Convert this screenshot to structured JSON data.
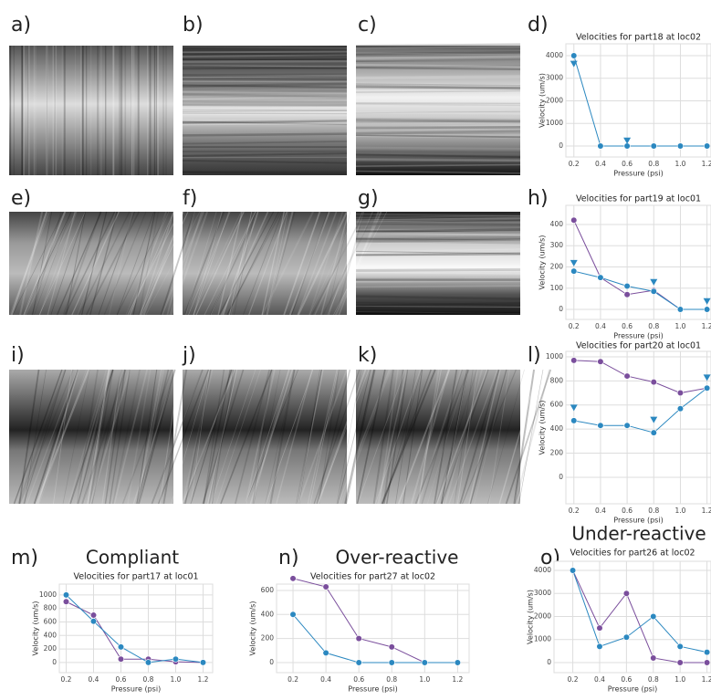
{
  "panel_labels": [
    "a)",
    "b)",
    "c)",
    "d)",
    "e)",
    "f)",
    "g)",
    "h)",
    "i)",
    "j)",
    "k)",
    "l)",
    "m)",
    "n)",
    "o)"
  ],
  "chart_data": [
    {
      "type": "line",
      "title": "Velocities for part18 at loc02",
      "x_label": "Pressure (psi)",
      "y_label": "Velocity (um/s)",
      "x": [
        0.2,
        0.4,
        0.6,
        0.8,
        1.0,
        1.2
      ],
      "xlim": [
        0.14,
        1.23
      ],
      "xticks": [
        0.2,
        0.4,
        0.6,
        0.8,
        {
          "value": 1,
          "label": "1.0"
        },
        1.2
      ],
      "ylim": [
        -485,
        4525
      ],
      "yticks": [
        0,
        1000,
        2000,
        3000,
        4000
      ],
      "grid": true,
      "series": [
        {
          "color": "#2b88c0",
          "marker": "circle",
          "linestyle": "solid",
          "values": [
            4000,
            0,
            0,
            0,
            0,
            0
          ]
        },
        {
          "color": "#2b88c0",
          "marker": "triangle",
          "linestyle": "none",
          "values": [
            3650,
            null,
            250,
            null,
            null,
            null
          ]
        }
      ]
    },
    {
      "type": "line",
      "title": "Velocities for part19 at loc01",
      "x_label": "Pressure (psi)",
      "y_label": "Velocity (um/s)",
      "x": [
        0.2,
        0.4,
        0.6,
        0.8,
        1.0,
        1.2
      ],
      "xlim": [
        0.14,
        1.23
      ],
      "xticks": [
        0.2,
        0.4,
        0.6,
        0.8,
        {
          "value": 1,
          "label": "1.0"
        },
        1.2
      ],
      "ylim": [
        -47,
        490
      ],
      "yticks": [
        0,
        100,
        200,
        300,
        400
      ],
      "grid": true,
      "series": [
        {
          "color": "#7a4e9c",
          "marker": "circle",
          "linestyle": "solid",
          "values": [
            420,
            150,
            70,
            90,
            0,
            0
          ]
        },
        {
          "color": "#2b88c0",
          "marker": "circle",
          "linestyle": "solid",
          "values": [
            180,
            150,
            110,
            85,
            0,
            0
          ]
        },
        {
          "color": "#2b88c0",
          "marker": "triangle",
          "linestyle": "none",
          "values": [
            220,
            null,
            null,
            130,
            null,
            40
          ]
        }
      ]
    },
    {
      "type": "line",
      "title": "Velocities for part20 at loc01",
      "x_label": "Pressure (psi)",
      "y_label": "Velocity (um/s)",
      "x": [
        0.2,
        0.4,
        0.6,
        0.8,
        1.0,
        1.2
      ],
      "xlim": [
        0.14,
        1.23
      ],
      "xticks": [
        0.2,
        0.4,
        0.6,
        0.8,
        {
          "value": 1,
          "label": "1.0"
        },
        1.2
      ],
      "ylim": [
        -220,
        1045
      ],
      "yticks": [
        0,
        200,
        400,
        600,
        800,
        1000
      ],
      "grid": true,
      "series": [
        {
          "color": "#7a4e9c",
          "marker": "circle",
          "linestyle": "solid",
          "values": [
            970,
            960,
            840,
            790,
            700,
            740
          ]
        },
        {
          "color": "#2b88c0",
          "marker": "circle",
          "linestyle": "solid",
          "values": [
            470,
            430,
            430,
            370,
            570,
            740
          ]
        },
        {
          "color": "#2b88c0",
          "marker": "triangle",
          "linestyle": "none",
          "values": [
            580,
            null,
            null,
            480,
            null,
            830
          ]
        }
      ]
    },
    {
      "type": "line",
      "heading": "Compliant",
      "title": "Velocities for part17 at loc01",
      "x_label": "Pressure (psi)",
      "y_label": "Velocity (um/s)",
      "x": [
        0.2,
        0.4,
        0.6,
        0.8,
        1.0,
        1.2
      ],
      "xlim": [
        0.15,
        1.27
      ],
      "xticks": [
        0.2,
        0.4,
        0.6,
        0.8,
        {
          "value": 1,
          "label": "1.0"
        },
        1.2
      ],
      "ylim": [
        -150,
        1160
      ],
      "yticks": [
        0,
        200,
        400,
        600,
        800,
        1000
      ],
      "grid": true,
      "series": [
        {
          "color": "#7a4e9c",
          "marker": "circle",
          "linestyle": "solid",
          "values": [
            900,
            700,
            50,
            50,
            10,
            0
          ]
        },
        {
          "color": "#2b88c0",
          "marker": "circle",
          "linestyle": "solid",
          "values": [
            1000,
            610,
            230,
            0,
            50,
            0
          ]
        }
      ]
    },
    {
      "type": "line",
      "heading": "Over-reactive",
      "title": "Velocities for part27 at loc02",
      "x_label": "Pressure (psi)",
      "y_label": "Velocity (um/s)",
      "x": [
        0.2,
        0.4,
        0.6,
        0.8,
        1.0,
        1.2
      ],
      "xlim": [
        0.1,
        1.27
      ],
      "xticks": [
        0.2,
        0.4,
        0.6,
        0.8,
        {
          "value": 1,
          "label": "1.0"
        },
        1.2
      ],
      "ylim": [
        -84,
        653
      ],
      "yticks": [
        0,
        200,
        400,
        600
      ],
      "grid": true,
      "series": [
        {
          "color": "#7a4e9c",
          "marker": "circle",
          "linestyle": "solid",
          "values": [
            700,
            630,
            200,
            130,
            0,
            0
          ]
        },
        {
          "color": "#2b88c0",
          "marker": "circle",
          "linestyle": "solid",
          "values": [
            400,
            80,
            0,
            0,
            0,
            0
          ]
        }
      ]
    },
    {
      "type": "line",
      "heading": "Under-reactive",
      "title": "Velocities for part26 at loc02",
      "x_label": "Pressure (psi)",
      "y_label": "Velocity (um/s)",
      "x": [
        0.2,
        0.4,
        0.6,
        0.8,
        1.0,
        1.2
      ],
      "xlim": [
        0.06,
        1.23
      ],
      "xticks": [
        0.2,
        0.4,
        0.6,
        0.8,
        {
          "value": 1,
          "label": "1.0"
        },
        1.2
      ],
      "ylim": [
        -436,
        4396
      ],
      "yticks": [
        0,
        1000,
        2000,
        3000,
        4000
      ],
      "grid": true,
      "series": [
        {
          "color": "#7a4e9c",
          "marker": "circle",
          "linestyle": "solid",
          "values": [
            4000,
            1500,
            3000,
            200,
            0,
            0
          ]
        },
        {
          "color": "#2b88c0",
          "marker": "circle",
          "linestyle": "solid",
          "values": [
            4000,
            700,
            1100,
            2000,
            700,
            450
          ]
        }
      ]
    }
  ]
}
